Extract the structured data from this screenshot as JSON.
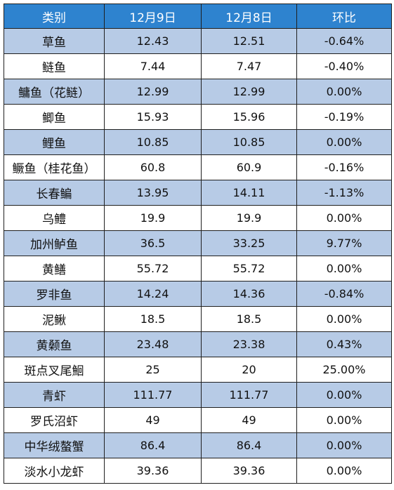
{
  "table": {
    "headers": [
      "类别",
      "12月9日",
      "12月8日",
      "环比"
    ],
    "rows": [
      [
        "草鱼",
        "12.43",
        "12.51",
        "-0.64%"
      ],
      [
        "鲢鱼",
        "7.44",
        "7.47",
        "-0.40%"
      ],
      [
        "鳙鱼（花鲢）",
        "12.99",
        "12.99",
        "0.00%"
      ],
      [
        "鲫鱼",
        "15.93",
        "15.96",
        "-0.19%"
      ],
      [
        "鲤鱼",
        "10.85",
        "10.85",
        "0.00%"
      ],
      [
        "鳜鱼（桂花鱼）",
        "60.8",
        "60.9",
        "-0.16%"
      ],
      [
        "长春鳊",
        "13.95",
        "14.11",
        "-1.13%"
      ],
      [
        "乌鳢",
        "19.9",
        "19.9",
        "0.00%"
      ],
      [
        "加州鲈鱼",
        "36.5",
        "33.25",
        "9.77%"
      ],
      [
        "黄鳝",
        "55.72",
        "55.72",
        "0.00%"
      ],
      [
        "罗非鱼",
        "14.24",
        "14.36",
        "-0.84%"
      ],
      [
        "泥鳅",
        "18.5",
        "18.5",
        "0.00%"
      ],
      [
        "黄颡鱼",
        "23.48",
        "23.38",
        "0.43%"
      ],
      [
        "斑点叉尾鮰",
        "25",
        "20",
        "25.00%"
      ],
      [
        "青虾",
        "111.77",
        "111.77",
        "0.00%"
      ],
      [
        "罗氏沼虾",
        "49",
        "49",
        "0.00%"
      ],
      [
        "中华绒螯蟹",
        "86.4",
        "86.4",
        "0.00%"
      ],
      [
        "淡水小龙虾",
        "39.36",
        "39.36",
        "0.00%"
      ]
    ]
  },
  "colors": {
    "header_bg": "#2e83cf",
    "header_text": "#ffffff",
    "stripe_bg": "#b7cbe6",
    "row_bg": "#ffffff",
    "border": "#1f1f1f"
  }
}
